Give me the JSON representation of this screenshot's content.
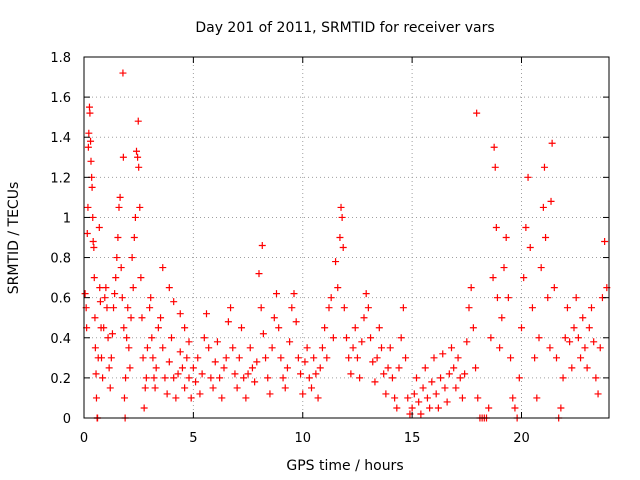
{
  "chart_data": {
    "type": "scatter",
    "title": "Day 201 of 2011, SRMTID for receiver vars",
    "xlabel": "GPS time / hours",
    "ylabel": "SRMTID / TECUs",
    "xlim": [
      0,
      24
    ],
    "ylim": [
      0,
      1.8
    ],
    "x_ticks": [
      "0",
      "5",
      "10",
      "15",
      "20"
    ],
    "x_tick_values": [
      0,
      5,
      10,
      15,
      20
    ],
    "y_ticks": [
      "0",
      "0.2",
      "0.4",
      "0.6",
      "0.8",
      "1",
      "1.2",
      "1.4",
      "1.6",
      "1.8"
    ],
    "y_tick_values": [
      0,
      0.2,
      0.4,
      0.6,
      0.8,
      1.0,
      1.2,
      1.4,
      1.6,
      1.8
    ],
    "grid": true,
    "marker": "plus",
    "color": "#ff0000",
    "points": [
      [
        0.05,
        0.62
      ],
      [
        0.1,
        0.55
      ],
      [
        0.12,
        0.45
      ],
      [
        0.15,
        0.92
      ],
      [
        0.18,
        1.05
      ],
      [
        0.2,
        1.35
      ],
      [
        0.22,
        1.42
      ],
      [
        0.25,
        1.55
      ],
      [
        0.27,
        1.52
      ],
      [
        0.3,
        1.38
      ],
      [
        0.32,
        1.28
      ],
      [
        0.35,
        1.2
      ],
      [
        0.37,
        1.15
      ],
      [
        0.4,
        1.0
      ],
      [
        0.42,
        0.88
      ],
      [
        0.45,
        0.85
      ],
      [
        0.47,
        0.7
      ],
      [
        0.5,
        0.5
      ],
      [
        0.52,
        0.35
      ],
      [
        0.55,
        0.22
      ],
      [
        0.57,
        0.1
      ],
      [
        0.6,
        0.0
      ],
      [
        0.62,
        0.0
      ],
      [
        0.65,
        0.3
      ],
      [
        0.7,
        0.95
      ],
      [
        0.72,
        0.65
      ],
      [
        0.75,
        0.58
      ],
      [
        0.78,
        0.45
      ],
      [
        0.8,
        0.3
      ],
      [
        0.85,
        0.2
      ],
      [
        0.9,
        0.45
      ],
      [
        0.95,
        0.6
      ],
      [
        1.0,
        0.65
      ],
      [
        1.05,
        0.55
      ],
      [
        1.1,
        0.4
      ],
      [
        1.15,
        0.25
      ],
      [
        1.2,
        0.15
      ],
      [
        1.25,
        0.3
      ],
      [
        1.3,
        0.42
      ],
      [
        1.35,
        0.55
      ],
      [
        1.4,
        0.62
      ],
      [
        1.45,
        0.7
      ],
      [
        1.5,
        0.8
      ],
      [
        1.55,
        0.9
      ],
      [
        1.6,
        1.05
      ],
      [
        1.65,
        1.1
      ],
      [
        1.7,
        0.75
      ],
      [
        1.75,
        0.6
      ],
      [
        1.78,
        1.72
      ],
      [
        1.8,
        1.3
      ],
      [
        1.82,
        0.45
      ],
      [
        1.85,
        0.1
      ],
      [
        1.88,
        0.0
      ],
      [
        1.9,
        0.2
      ],
      [
        1.95,
        0.4
      ],
      [
        2.0,
        0.55
      ],
      [
        2.05,
        0.35
      ],
      [
        2.1,
        0.25
      ],
      [
        2.15,
        0.5
      ],
      [
        2.2,
        0.8
      ],
      [
        2.25,
        0.65
      ],
      [
        2.3,
        0.9
      ],
      [
        2.35,
        1.0
      ],
      [
        2.4,
        1.33
      ],
      [
        2.45,
        1.3
      ],
      [
        2.48,
        1.48
      ],
      [
        2.5,
        1.25
      ],
      [
        2.55,
        1.05
      ],
      [
        2.6,
        0.7
      ],
      [
        2.65,
        0.5
      ],
      [
        2.7,
        0.3
      ],
      [
        2.75,
        0.05
      ],
      [
        2.8,
        0.15
      ],
      [
        2.85,
        0.2
      ],
      [
        2.9,
        0.35
      ],
      [
        3.0,
        0.55
      ],
      [
        3.05,
        0.6
      ],
      [
        3.1,
        0.4
      ],
      [
        3.15,
        0.3
      ],
      [
        3.2,
        0.2
      ],
      [
        3.25,
        0.15
      ],
      [
        3.3,
        0.25
      ],
      [
        3.4,
        0.45
      ],
      [
        3.5,
        0.5
      ],
      [
        3.6,
        0.35
      ],
      [
        3.7,
        0.2
      ],
      [
        3.8,
        0.12
      ],
      [
        3.9,
        0.28
      ],
      [
        4.0,
        0.4
      ],
      [
        4.1,
        0.2
      ],
      [
        4.2,
        0.1
      ],
      [
        4.3,
        0.22
      ],
      [
        4.4,
        0.33
      ],
      [
        4.5,
        0.25
      ],
      [
        4.6,
        0.15
      ],
      [
        4.7,
        0.3
      ],
      [
        4.8,
        0.2
      ],
      [
        4.9,
        0.1
      ],
      [
        3.6,
        0.75
      ],
      [
        3.9,
        0.65
      ],
      [
        4.1,
        0.58
      ],
      [
        4.4,
        0.52
      ],
      [
        4.6,
        0.45
      ],
      [
        4.8,
        0.38
      ],
      [
        5.0,
        0.25
      ],
      [
        5.1,
        0.18
      ],
      [
        5.2,
        0.3
      ],
      [
        5.3,
        0.12
      ],
      [
        5.4,
        0.22
      ],
      [
        5.5,
        0.4
      ],
      [
        5.6,
        0.52
      ],
      [
        5.7,
        0.35
      ],
      [
        5.8,
        0.2
      ],
      [
        5.9,
        0.15
      ],
      [
        6.0,
        0.28
      ],
      [
        6.1,
        0.38
      ],
      [
        6.2,
        0.2
      ],
      [
        6.3,
        0.1
      ],
      [
        6.4,
        0.25
      ],
      [
        6.5,
        0.3
      ],
      [
        6.6,
        0.48
      ],
      [
        6.7,
        0.55
      ],
      [
        6.8,
        0.35
      ],
      [
        6.9,
        0.22
      ],
      [
        7.0,
        0.15
      ],
      [
        7.1,
        0.3
      ],
      [
        7.2,
        0.45
      ],
      [
        7.3,
        0.2
      ],
      [
        7.4,
        0.1
      ],
      [
        7.5,
        0.22
      ],
      [
        7.6,
        0.35
      ],
      [
        7.7,
        0.25
      ],
      [
        7.8,
        0.18
      ],
      [
        7.9,
        0.28
      ],
      [
        8.0,
        0.72
      ],
      [
        8.1,
        0.55
      ],
      [
        8.15,
        0.86
      ],
      [
        8.2,
        0.42
      ],
      [
        8.3,
        0.3
      ],
      [
        8.4,
        0.2
      ],
      [
        8.5,
        0.12
      ],
      [
        8.6,
        0.35
      ],
      [
        8.7,
        0.5
      ],
      [
        8.8,
        0.62
      ],
      [
        8.9,
        0.45
      ],
      [
        9.0,
        0.3
      ],
      [
        9.1,
        0.2
      ],
      [
        9.2,
        0.15
      ],
      [
        9.3,
        0.25
      ],
      [
        9.4,
        0.38
      ],
      [
        9.5,
        0.55
      ],
      [
        9.6,
        0.62
      ],
      [
        9.7,
        0.48
      ],
      [
        9.8,
        0.3
      ],
      [
        9.9,
        0.22
      ],
      [
        10.0,
        0.12
      ],
      [
        10.1,
        0.28
      ],
      [
        10.2,
        0.35
      ],
      [
        10.3,
        0.2
      ],
      [
        10.4,
        0.15
      ],
      [
        10.5,
        0.3
      ],
      [
        10.6,
        0.22
      ],
      [
        10.7,
        0.1
      ],
      [
        10.8,
        0.25
      ],
      [
        10.9,
        0.35
      ],
      [
        11.0,
        0.45
      ],
      [
        11.1,
        0.3
      ],
      [
        11.2,
        0.55
      ],
      [
        11.3,
        0.6
      ],
      [
        11.4,
        0.4
      ],
      [
        11.5,
        0.78
      ],
      [
        11.6,
        0.65
      ],
      [
        11.7,
        0.9
      ],
      [
        11.75,
        1.05
      ],
      [
        11.8,
        1.0
      ],
      [
        11.85,
        0.85
      ],
      [
        11.9,
        0.55
      ],
      [
        12.0,
        0.4
      ],
      [
        12.1,
        0.3
      ],
      [
        12.2,
        0.22
      ],
      [
        12.3,
        0.35
      ],
      [
        12.4,
        0.45
      ],
      [
        12.5,
        0.3
      ],
      [
        12.6,
        0.2
      ],
      [
        12.7,
        0.38
      ],
      [
        12.8,
        0.5
      ],
      [
        12.9,
        0.62
      ],
      [
        13.0,
        0.55
      ],
      [
        13.1,
        0.4
      ],
      [
        13.2,
        0.28
      ],
      [
        13.3,
        0.18
      ],
      [
        13.4,
        0.3
      ],
      [
        13.5,
        0.45
      ],
      [
        13.6,
        0.35
      ],
      [
        13.7,
        0.22
      ],
      [
        13.8,
        0.12
      ],
      [
        13.9,
        0.25
      ],
      [
        14.0,
        0.35
      ],
      [
        14.1,
        0.2
      ],
      [
        14.2,
        0.1
      ],
      [
        14.3,
        0.05
      ],
      [
        14.4,
        0.25
      ],
      [
        14.5,
        0.4
      ],
      [
        14.6,
        0.55
      ],
      [
        14.7,
        0.3
      ],
      [
        14.8,
        0.1
      ],
      [
        14.9,
        0.02
      ],
      [
        15.0,
        0.05
      ],
      [
        15.1,
        0.12
      ],
      [
        15.2,
        0.2
      ],
      [
        15.3,
        0.08
      ],
      [
        15.4,
        0.02
      ],
      [
        15.5,
        0.15
      ],
      [
        15.6,
        0.25
      ],
      [
        15.7,
        0.1
      ],
      [
        15.8,
        0.05
      ],
      [
        15.9,
        0.18
      ],
      [
        16.0,
        0.3
      ],
      [
        16.1,
        0.12
      ],
      [
        16.2,
        0.05
      ],
      [
        16.3,
        0.2
      ],
      [
        16.4,
        0.32
      ],
      [
        16.5,
        0.15
      ],
      [
        16.6,
        0.08
      ],
      [
        16.7,
        0.22
      ],
      [
        16.8,
        0.35
      ],
      [
        16.9,
        0.25
      ],
      [
        17.0,
        0.15
      ],
      [
        17.1,
        0.3
      ],
      [
        17.2,
        0.2
      ],
      [
        17.3,
        0.1
      ],
      [
        17.4,
        0.22
      ],
      [
        17.5,
        0.38
      ],
      [
        17.6,
        0.55
      ],
      [
        17.7,
        0.65
      ],
      [
        17.8,
        0.45
      ],
      [
        17.9,
        0.25
      ],
      [
        17.95,
        1.52
      ],
      [
        18.0,
        0.1
      ],
      [
        18.1,
        0.0
      ],
      [
        18.2,
        0.0
      ],
      [
        18.3,
        0.0
      ],
      [
        18.4,
        0.0
      ],
      [
        18.5,
        0.05
      ],
      [
        18.6,
        0.4
      ],
      [
        18.7,
        0.7
      ],
      [
        18.75,
        1.35
      ],
      [
        18.8,
        1.25
      ],
      [
        18.85,
        0.95
      ],
      [
        18.9,
        0.6
      ],
      [
        19.0,
        0.35
      ],
      [
        19.1,
        0.5
      ],
      [
        19.2,
        0.75
      ],
      [
        19.3,
        0.9
      ],
      [
        19.4,
        0.6
      ],
      [
        19.5,
        0.3
      ],
      [
        19.6,
        0.1
      ],
      [
        19.7,
        0.05
      ],
      [
        19.8,
        0.0
      ],
      [
        19.9,
        0.2
      ],
      [
        20.0,
        0.45
      ],
      [
        20.1,
        0.7
      ],
      [
        20.2,
        0.95
      ],
      [
        20.3,
        1.2
      ],
      [
        20.4,
        0.85
      ],
      [
        20.5,
        0.55
      ],
      [
        20.6,
        0.3
      ],
      [
        20.7,
        0.1
      ],
      [
        20.8,
        0.4
      ],
      [
        20.9,
        0.75
      ],
      [
        21.0,
        1.05
      ],
      [
        21.05,
        1.25
      ],
      [
        21.1,
        0.9
      ],
      [
        21.2,
        0.6
      ],
      [
        21.3,
        0.35
      ],
      [
        21.35,
        1.08
      ],
      [
        21.4,
        1.37
      ],
      [
        21.5,
        0.65
      ],
      [
        21.6,
        0.3
      ],
      [
        21.7,
        0.0
      ],
      [
        21.8,
        0.05
      ],
      [
        21.9,
        0.2
      ],
      [
        22.0,
        0.4
      ],
      [
        22.1,
        0.55
      ],
      [
        22.2,
        0.38
      ],
      [
        22.3,
        0.25
      ],
      [
        22.4,
        0.45
      ],
      [
        22.5,
        0.6
      ],
      [
        22.6,
        0.4
      ],
      [
        22.7,
        0.3
      ],
      [
        22.8,
        0.5
      ],
      [
        22.9,
        0.35
      ],
      [
        23.0,
        0.25
      ],
      [
        23.1,
        0.45
      ],
      [
        23.2,
        0.55
      ],
      [
        23.3,
        0.38
      ],
      [
        23.4,
        0.2
      ],
      [
        23.5,
        0.12
      ],
      [
        23.6,
        0.35
      ],
      [
        23.7,
        0.6
      ],
      [
        23.8,
        0.88
      ],
      [
        23.9,
        0.65
      ]
    ]
  }
}
